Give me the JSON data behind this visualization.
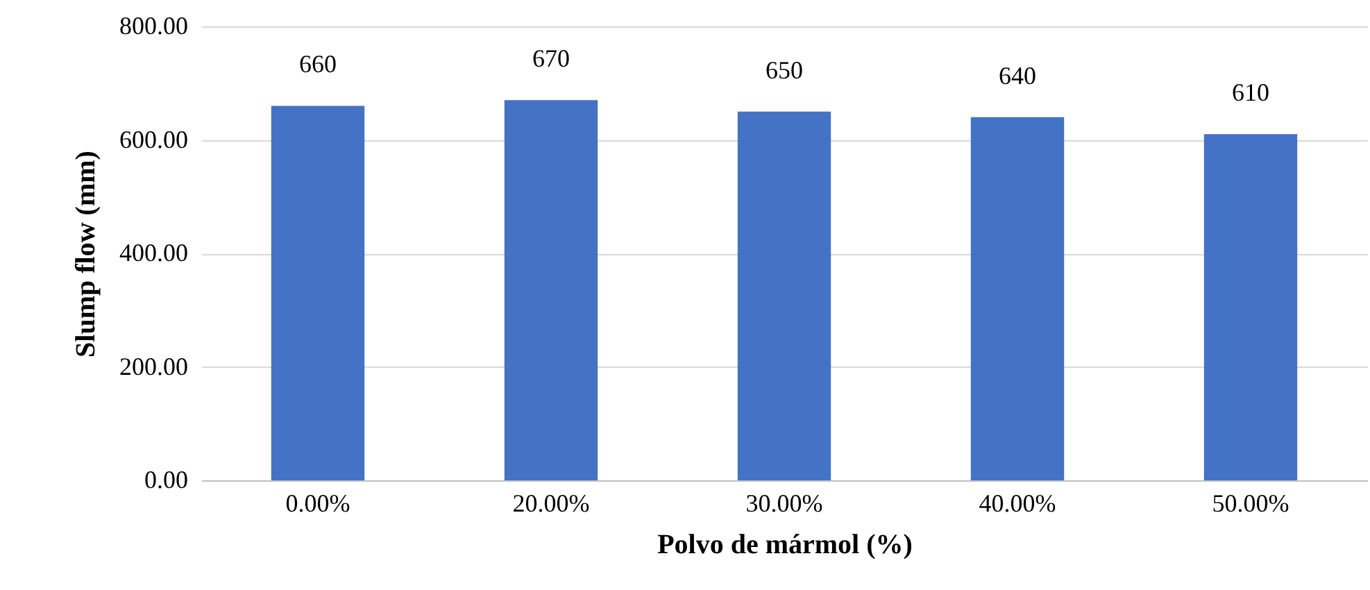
{
  "chart_data": {
    "type": "bar",
    "xlabel": "Polvo de mármol (%)",
    "ylabel": "Slump flow (mm)",
    "categories": [
      "0.00%",
      "20.00%",
      "30.00%",
      "40.00%",
      "50.00%"
    ],
    "values": [
      660,
      670,
      650,
      640,
      610
    ],
    "color": "#4472c4",
    "ylim": [
      0,
      800
    ],
    "yticks": [
      {
        "value": 0,
        "label": "0.00"
      },
      {
        "value": 200,
        "label": "200.00"
      },
      {
        "value": 400,
        "label": "400.00"
      },
      {
        "value": 600,
        "label": "600.00"
      },
      {
        "value": 800,
        "label": "800.00"
      }
    ],
    "grid": "y",
    "data_labels": true
  }
}
